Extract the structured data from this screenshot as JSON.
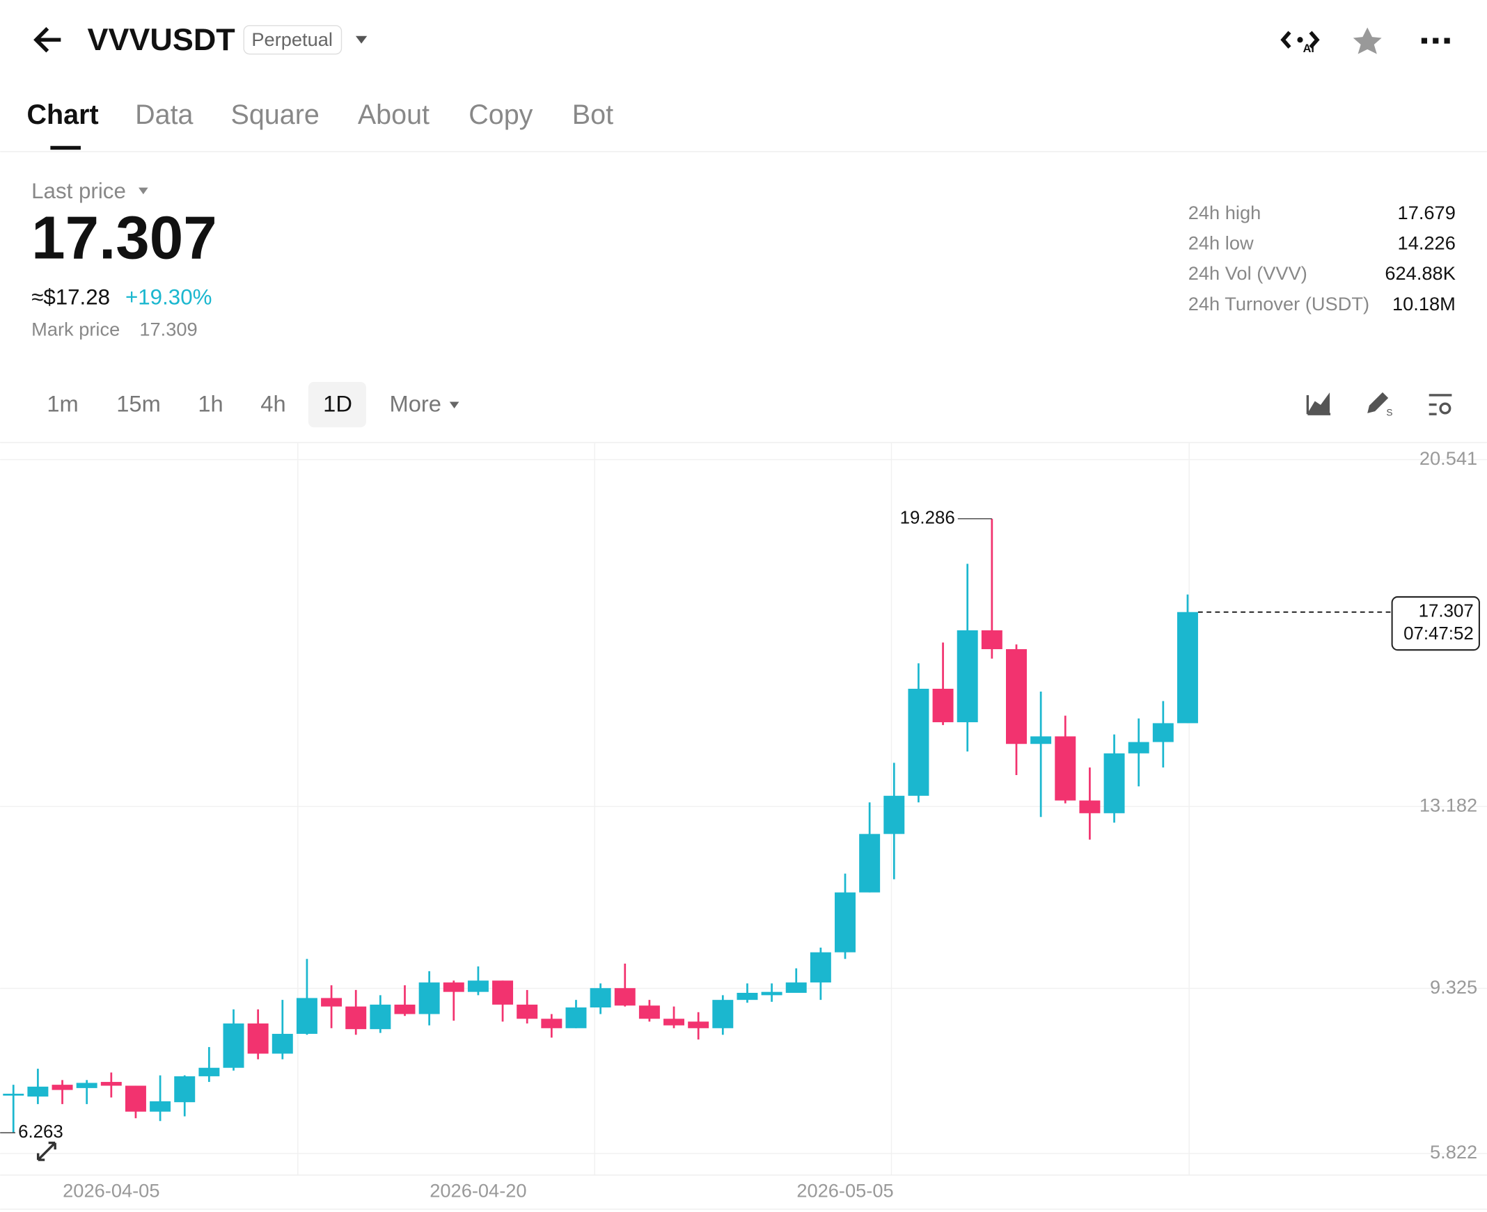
{
  "header": {
    "title": "VVVUSDT",
    "badge": "Perpetual"
  },
  "tabs": [
    "Chart",
    "Data",
    "Square",
    "About",
    "Copy",
    "Bot"
  ],
  "price": {
    "label": "Last price",
    "value": "17.307",
    "usd": "≈$17.28",
    "change": "+19.30%",
    "mark_label": "Mark price",
    "mark_value": "17.309"
  },
  "stats": [
    {
      "label": "24h high",
      "value": "17.679"
    },
    {
      "label": "24h low",
      "value": "14.226"
    },
    {
      "label": "24h Vol (VVV)",
      "value": "624.88K"
    },
    {
      "label": "24h Turnover (USDT)",
      "value": "10.18M"
    }
  ],
  "intervals": [
    "1m",
    "15m",
    "1h",
    "4h",
    "1D",
    "More"
  ],
  "chart_data": {
    "type": "candlestick",
    "categories": [
      null,
      null,
      null,
      null,
      "2026-04-05",
      null,
      null,
      null,
      null,
      null,
      null,
      null,
      null,
      null,
      null,
      null,
      null,
      null,
      null,
      "2026-04-20",
      null,
      null,
      null,
      null,
      null,
      null,
      null,
      null,
      null,
      null,
      null,
      null,
      null,
      null,
      "2026-05-05",
      null,
      null,
      null,
      null,
      null,
      null,
      null,
      null,
      null,
      null,
      null,
      null,
      null,
      null
    ],
    "open": [
      7.05,
      7.03,
      7.28,
      7.21,
      7.34,
      7.26,
      6.71,
      6.91,
      7.46,
      7.64,
      8.58,
      7.94,
      8.36,
      9.12,
      8.94,
      8.46,
      8.98,
      8.78,
      9.45,
      9.25,
      9.49,
      8.98,
      8.68,
      8.48,
      8.92,
      9.33,
      8.96,
      8.68,
      8.62,
      8.48,
      9.08,
      9.18,
      9.23,
      9.45,
      10.09,
      11.36,
      12.6,
      13.41,
      15.68,
      14.97,
      16.92,
      16.52,
      14.51,
      14.67,
      13.31,
      13.04,
      14.31,
      14.55,
      14.95
    ],
    "high": [
      7.28,
      7.62,
      7.38,
      7.38,
      7.54,
      7.26,
      7.48,
      7.48,
      8.08,
      8.88,
      8.88,
      9.08,
      9.95,
      9.39,
      9.29,
      9.18,
      9.39,
      9.69,
      9.49,
      9.79,
      9.49,
      9.29,
      8.78,
      9.08,
      9.43,
      9.85,
      9.08,
      8.94,
      8.82,
      9.18,
      9.43,
      9.43,
      9.75,
      10.19,
      11.76,
      13.27,
      14.11,
      16.22,
      16.66,
      18.33,
      19.286,
      16.62,
      15.62,
      15.11,
      14.01,
      14.71,
      15.05,
      15.42,
      17.679
    ],
    "low": [
      6.263,
      6.87,
      6.87,
      6.87,
      7.01,
      6.57,
      6.51,
      6.61,
      7.34,
      7.58,
      7.82,
      7.82,
      8.34,
      8.48,
      8.34,
      8.38,
      8.74,
      8.54,
      8.64,
      9.18,
      8.62,
      8.58,
      8.28,
      8.48,
      8.78,
      8.94,
      8.62,
      8.48,
      8.24,
      8.34,
      9.02,
      9.04,
      9.23,
      9.08,
      9.95,
      11.36,
      11.64,
      13.27,
      14.91,
      14.35,
      16.32,
      13.85,
      12.96,
      13.25,
      12.48,
      12.84,
      13.61,
      14.01,
      14.95
    ],
    "close": [
      7.09,
      7.24,
      7.17,
      7.32,
      7.26,
      6.71,
      6.93,
      7.46,
      7.64,
      8.58,
      7.94,
      8.36,
      9.12,
      8.94,
      8.46,
      8.98,
      8.78,
      9.45,
      9.25,
      9.49,
      8.98,
      8.68,
      8.48,
      8.92,
      9.33,
      8.96,
      8.68,
      8.54,
      8.48,
      9.08,
      9.23,
      9.25,
      9.45,
      10.09,
      11.36,
      12.6,
      13.41,
      15.68,
      14.97,
      16.92,
      16.52,
      14.51,
      14.67,
      13.31,
      13.04,
      14.31,
      14.55,
      14.95,
      17.307
    ],
    "up_color": "#1bb7cf",
    "down_color": "#f2336f",
    "ylim": [
      5.365,
      20.903
    ],
    "yticks": [
      5.822,
      9.325,
      13.182,
      20.541
    ],
    "grid": true,
    "countdown": "07:47:52"
  }
}
